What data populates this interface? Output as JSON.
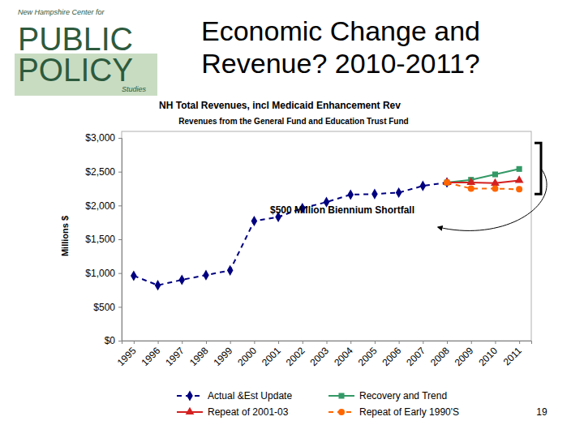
{
  "slide": {
    "logo": [
      "New Hampshire Center for",
      "PUBLIC",
      "POLICY",
      "Studies"
    ],
    "title": [
      "Economic Change and",
      "Revenue? 2010-2011?"
    ],
    "page": 19
  },
  "chart_data": {
    "type": "line",
    "title": "NH Total Revenues, incl Medicaid Enhancement Rev",
    "subtitle": "Revenues from the General Fund and Education Trust Fund",
    "y_label": "Millions $",
    "annotation": "$500 Million Biennium Shortfall",
    "categories": [
      "1995",
      "1996",
      "1997",
      "1998",
      "1999",
      "2000",
      "2001",
      "2002",
      "2003",
      "2004",
      "2005",
      "2006",
      "2007",
      "2008",
      "2009",
      "2010",
      "2011"
    ],
    "ylim": [
      0,
      3000
    ],
    "yticks": [
      {
        "value": 0,
        "label": "$0"
      },
      {
        "value": 500,
        "label": "$500"
      },
      {
        "value": 1000,
        "label": "$1,000"
      },
      {
        "value": 1500,
        "label": "$1,500"
      },
      {
        "value": 2000,
        "label": "$2,000"
      },
      {
        "value": 2500,
        "label": "$2,500"
      },
      {
        "value": 3000,
        "label": "$3,000"
      }
    ],
    "grid": false,
    "legend": "bottom",
    "series": [
      {
        "name": "Actual &Est Update",
        "color": "#000080",
        "marker": "diamond",
        "line_style": "dashed",
        "values": [
          960,
          820,
          900,
          970,
          1040,
          1770,
          1830,
          1960,
          2050,
          2160,
          2170,
          2190,
          2290,
          2340,
          null,
          null,
          null
        ]
      },
      {
        "name": "Recovery and Trend",
        "color": "#339966",
        "marker": "square",
        "line_style": "solid",
        "values": [
          null,
          null,
          null,
          null,
          null,
          null,
          null,
          null,
          null,
          null,
          null,
          null,
          null,
          2340,
          2380,
          2460,
          2540
        ]
      },
      {
        "name": "Repeat of 2001-03",
        "color": "#d42020",
        "marker": "triangle",
        "line_style": "solid",
        "values": [
          null,
          null,
          null,
          null,
          null,
          null,
          null,
          null,
          null,
          null,
          null,
          null,
          null,
          2340,
          2340,
          2330,
          2370
        ]
      },
      {
        "name": "Repeat of Early 1990'S",
        "color": "#ff6600",
        "marker": "circle",
        "line_style": "dashed",
        "values": [
          null,
          null,
          null,
          null,
          null,
          null,
          null,
          null,
          null,
          null,
          null,
          null,
          null,
          2340,
          2250,
          2250,
          2240
        ]
      }
    ]
  }
}
